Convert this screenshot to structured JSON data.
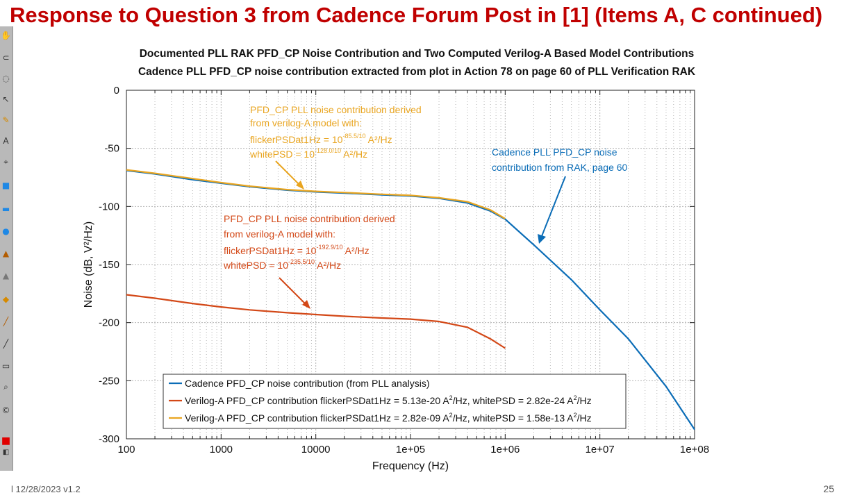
{
  "slide": {
    "title": "Response to Question 3 from Cadence Forum Post in [1] (Items A, C continued)",
    "footer_date": "l 12/28/2023 v1.2",
    "page_number": "25"
  },
  "toolbar": {
    "icons": [
      "hand-tool-icon",
      "lasso-icon",
      "ellipse-select-icon",
      "move-tool-icon",
      "pencil-icon",
      "text-tool-icon",
      "crosshair-icon",
      "rectangle-icon",
      "rounded-rect-icon",
      "circle-icon",
      "stamp-icon",
      "cone-icon",
      "eraser-icon",
      "brush-icon",
      "paint-brush-icon",
      "ruler-icon",
      "zoom-icon",
      "copyright-icon",
      "color-swatch-icon",
      "swap-colors-icon"
    ]
  },
  "chart_data": {
    "type": "line",
    "title_line1": "Documented PLL RAK PFD_CP Noise Contribution and Two Computed Verilog-A Based Model Contributions",
    "title_line2": "Cadence PLL PFD_CP noise contribution extracted from plot in Action 78 on page 60 of PLL Verification RAK",
    "xlabel": "Frequency (Hz)",
    "ylabel": "Noise (dB, V²/Hz)",
    "xscale": "log",
    "xlim": [
      100,
      100000000
    ],
    "ylim": [
      -300,
      0
    ],
    "grid": true,
    "x_ticks": [
      {
        "value": 100,
        "label": "100"
      },
      {
        "value": 1000,
        "label": "1000"
      },
      {
        "value": 10000,
        "label": "10000"
      },
      {
        "value": 100000,
        "label": "1e+05"
      },
      {
        "value": 1000000,
        "label": "1e+06"
      },
      {
        "value": 10000000,
        "label": "1e+07"
      },
      {
        "value": 100000000,
        "label": "1e+08"
      }
    ],
    "y_ticks": [
      {
        "value": 0,
        "label": "0"
      },
      {
        "value": -50,
        "label": "-50"
      },
      {
        "value": -100,
        "label": "-100"
      },
      {
        "value": -150,
        "label": "-150"
      },
      {
        "value": -200,
        "label": "-200"
      },
      {
        "value": -250,
        "label": "-250"
      },
      {
        "value": -300,
        "label": "-300"
      }
    ],
    "series": [
      {
        "name": "Cadence PFD_CP noise contribution (from PLL analysis)",
        "legend_text": "Cadence PFD_CP noise contribution (from PLL analysis)",
        "color": "#0b6db7",
        "x": [
          100,
          200,
          500,
          1000,
          2000,
          5000,
          10000,
          20000,
          50000,
          100000,
          200000,
          400000,
          700000,
          1000000,
          2000000,
          5000000,
          10000000,
          20000000,
          50000000,
          100000000
        ],
        "y": [
          -69,
          -72,
          -77,
          -80,
          -83,
          -86,
          -87.5,
          -88.5,
          -90,
          -91,
          -93,
          -97,
          -104,
          -111,
          -133,
          -163,
          -189,
          -214,
          -255,
          -292
        ]
      },
      {
        "name": "Verilog-A PFD_CP contribution flickerPSDat1Hz = 5.13e-20 A²/Hz, whitePSD = 2.82e-24 A²/Hz",
        "legend_pre": "Verilog-A PFD_CP contribution flickerPSDat1Hz = 5.13e-20 A",
        "legend_mid": "/Hz, whitePSD = 2.82e-24 A",
        "legend_post": "/Hz",
        "color": "#d34817",
        "x": [
          100,
          200,
          500,
          1000,
          2000,
          5000,
          10000,
          20000,
          50000,
          100000,
          200000,
          400000,
          700000,
          1000000
        ],
        "y": [
          -176,
          -179,
          -183.5,
          -186.5,
          -189,
          -191.5,
          -193,
          -194.5,
          -196,
          -197,
          -199,
          -204,
          -214,
          -222
        ]
      },
      {
        "name": "Verilog-A PFD_CP contribution flickerPSDat1Hz = 2.82e-09 A²/Hz, whitePSD = 1.58e-13 A²/Hz",
        "legend_pre": "Verilog-A PFD_CP contribution flickerPSDat1Hz = 2.82e-09 A",
        "legend_mid": "/Hz, whitePSD = 1.58e-13 A",
        "legend_post": "/Hz",
        "color": "#e9a520",
        "x": [
          100,
          200,
          500,
          1000,
          2000,
          5000,
          10000,
          20000,
          50000,
          100000,
          200000,
          400000,
          700000,
          1000000
        ],
        "y": [
          -68.5,
          -71.5,
          -76,
          -79.5,
          -82.5,
          -85.5,
          -87,
          -88,
          -89.5,
          -90.5,
          -92.5,
          -96,
          -103,
          -110.5
        ]
      }
    ],
    "annotations": [
      {
        "color": "#e9a520",
        "line1": "PFD_CP PLL noise contribution derived",
        "line2": "from verilog-A model with:",
        "line3_pre": "flickerPSDat1Hz = 10",
        "line3_sup": "-85.5/10",
        "line3_post": " A²/Hz",
        "line4_pre": "whitePSD = 10",
        "line4_sup": "-128.0/10",
        "line4_post": " A²/Hz",
        "arrow_to": {
          "x": 3000,
          "y": -84
        }
      },
      {
        "color": "#0b6db7",
        "line1": "Cadence PLL PFD_CP noise",
        "line2": "contribution from RAK, page 60",
        "arrow_to": {
          "x": 2000000,
          "y": -133
        }
      },
      {
        "color": "#d34817",
        "line1": "PFD_CP PLL noise contribution derived",
        "line2": "from verilog-A model with:",
        "line3_pre": "flickerPSDat1Hz = 10",
        "line3_sup": "-192.9/10",
        "line3_post": " A²/Hz",
        "line4_pre": "whitePSD = 10",
        "line4_sup": "-235.5/10",
        "line4_post": " A²/Hz",
        "arrow_to": {
          "x": 12000,
          "y": -191
        }
      }
    ]
  }
}
